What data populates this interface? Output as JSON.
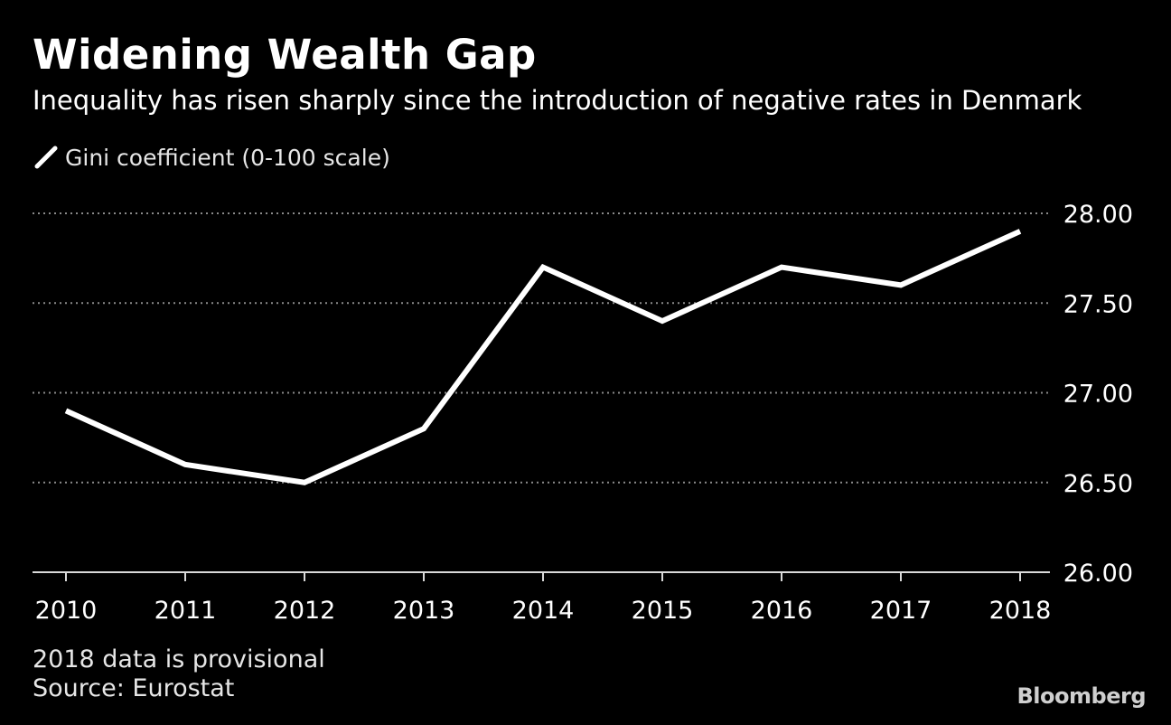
{
  "header": {
    "title": "Widening Wealth Gap",
    "subtitle": "Inequality has risen sharply since the introduction of negative rates in Denmark"
  },
  "footer": {
    "note": "2018 data is provisional",
    "source": "Source: Eurostat",
    "brand": "Bloomberg"
  },
  "colors": {
    "background": "#000000",
    "line": "#ffffff",
    "grid": "#8a8a8a",
    "text": "#ffffff"
  },
  "chart_data": {
    "type": "line",
    "title": "Widening Wealth Gap",
    "subtitle": "Inequality has risen sharply since the introduction of negative rates in Denmark",
    "xlabel": "",
    "ylabel": "",
    "x": [
      "2010",
      "2011",
      "2012",
      "2013",
      "2014",
      "2015",
      "2016",
      "2017",
      "2018"
    ],
    "series": [
      {
        "name": "Gini coefficient (0-100 scale)",
        "values": [
          26.9,
          26.6,
          26.5,
          26.8,
          27.7,
          27.4,
          27.7,
          27.6,
          27.9
        ]
      }
    ],
    "ylim": [
      26.0,
      28.0
    ],
    "yticks": [
      "26.00",
      "26.50",
      "27.00",
      "27.50",
      "28.00"
    ],
    "grid": true,
    "grid_style": "dotted",
    "y_axis_side": "right",
    "legend_position": "top-left"
  }
}
